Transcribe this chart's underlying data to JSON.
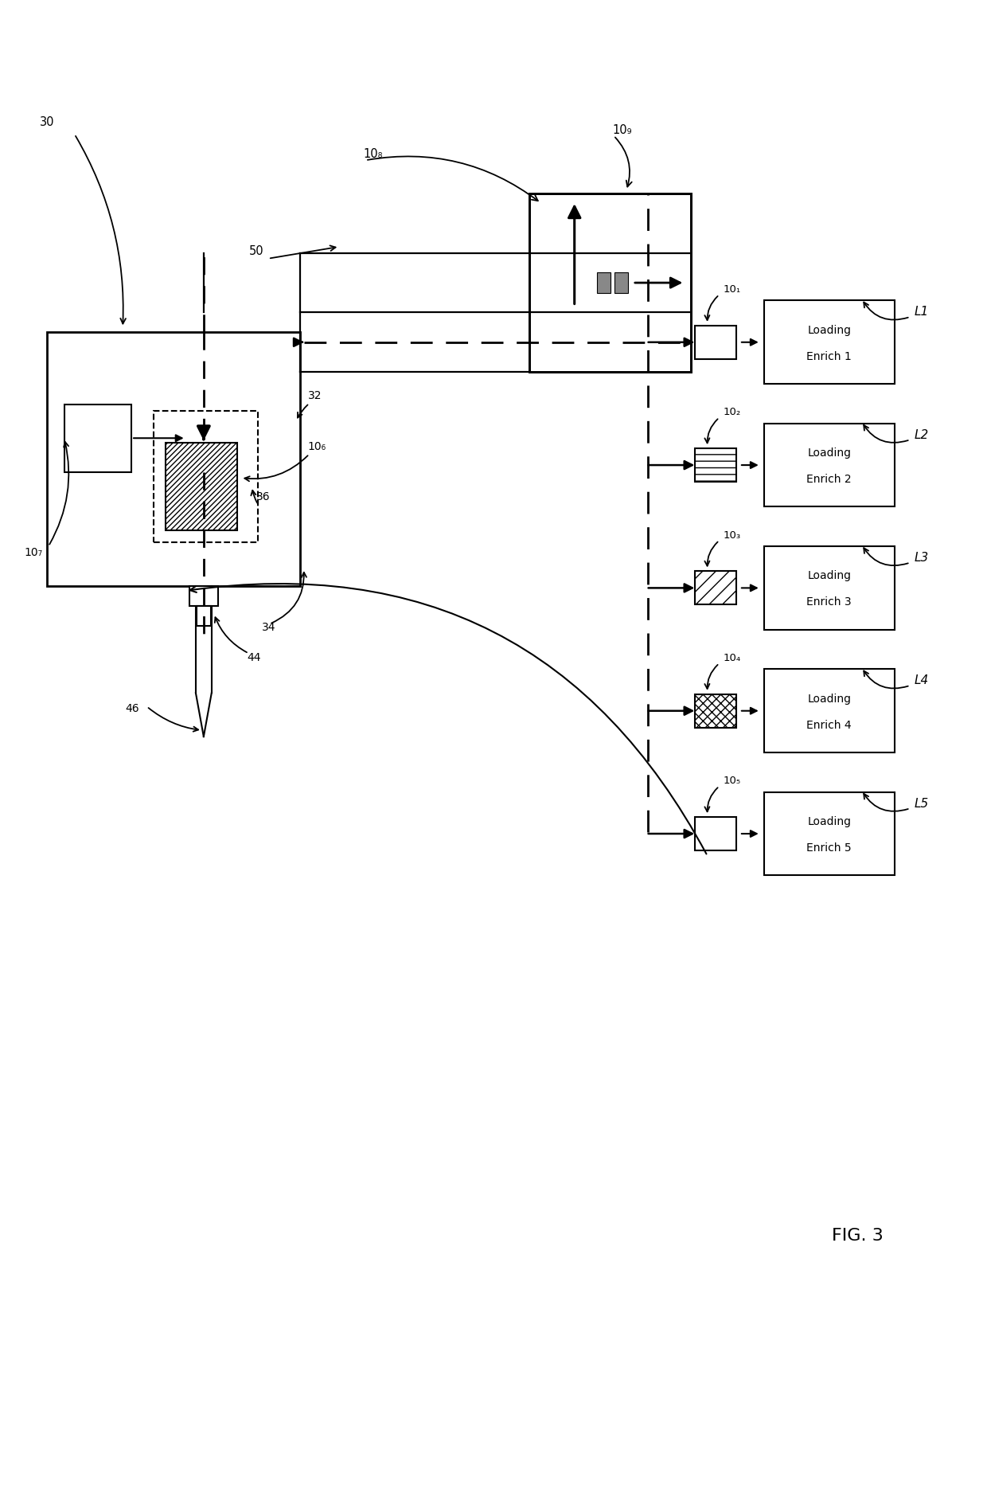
{
  "bg": "#ffffff",
  "fig_label": "FIG. 3",
  "label_30": "30",
  "label_50": "50",
  "label_32": "32",
  "label_34": "34",
  "label_36": "36",
  "label_44": "44",
  "label_46": "46",
  "label_108": "10₈",
  "label_109": "10₉",
  "label_101": "10₁",
  "label_102": "10₂",
  "label_103": "10₃",
  "label_104": "10₄",
  "label_105": "10₅",
  "label_106": "10₆",
  "label_107": "10₇",
  "enrich_labels": [
    "Loading\nEnrich 1",
    "Loading\nEnrich 2",
    "Loading\nEnrich 3",
    "Loading\nEnrich 4",
    "Loading\nEnrich 5"
  ],
  "L_labels": [
    "L1",
    "L2",
    "L3",
    "L4",
    "L5"
  ],
  "station_labels": [
    "10₁",
    "10₂",
    "10₃",
    "10₄",
    "10₅"
  ],
  "small_box_hatch": [
    null,
    "---",
    "///",
    "xxx",
    "===="
  ]
}
